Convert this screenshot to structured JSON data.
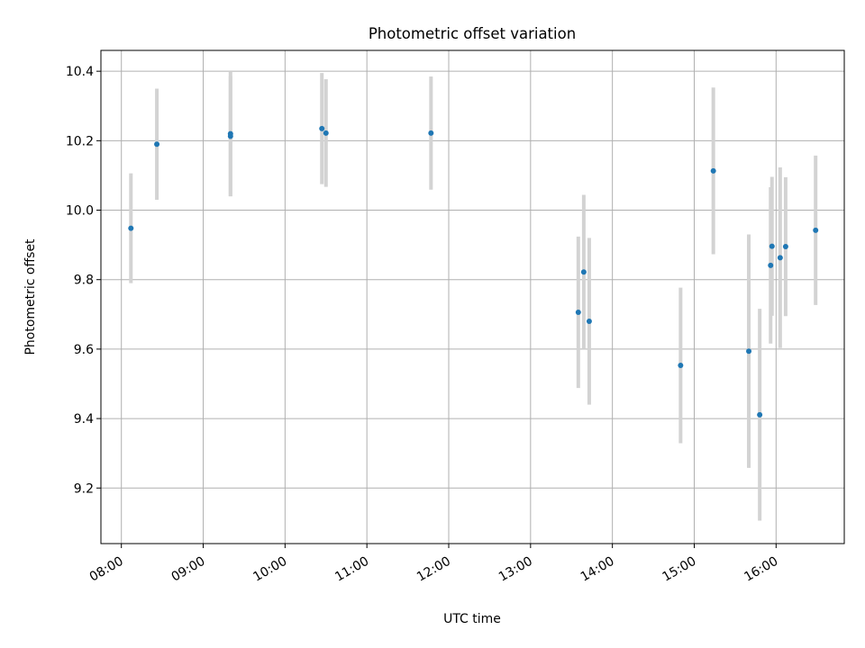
{
  "chart_data": {
    "type": "scatter",
    "title": "Photometric offset variation",
    "xlabel": "UTC time",
    "ylabel": "Photometric offset",
    "xlim": [
      "07:45",
      "16:50"
    ],
    "ylim": [
      9.04,
      10.46
    ],
    "x_ticks": [
      "08:00",
      "09:00",
      "10:00",
      "11:00",
      "12:00",
      "13:00",
      "14:00",
      "15:00",
      "16:00"
    ],
    "y_ticks": [
      9.2,
      9.4,
      9.6,
      9.8,
      10.0,
      10.2,
      10.4
    ],
    "grid": true,
    "marker_color": "#1f77b4",
    "errorbar_color": "#d3d3d3",
    "points": [
      {
        "x": "08:07",
        "y": 9.948,
        "err": 0.158
      },
      {
        "x": "08:26",
        "y": 10.19,
        "err": 0.16
      },
      {
        "x": "09:20",
        "y": 10.213,
        "err": 0.173
      },
      {
        "x": "09:20",
        "y": 10.22,
        "err": 0.18
      },
      {
        "x": "10:27",
        "y": 10.235,
        "err": 0.16
      },
      {
        "x": "10:30",
        "y": 10.222,
        "err": 0.155
      },
      {
        "x": "11:47",
        "y": 10.222,
        "err": 0.163
      },
      {
        "x": "13:35",
        "y": 9.706,
        "err": 0.218
      },
      {
        "x": "13:39",
        "y": 9.822,
        "err": 0.222
      },
      {
        "x": "13:43",
        "y": 9.68,
        "err": 0.24
      },
      {
        "x": "14:50",
        "y": 9.553,
        "err": 0.224
      },
      {
        "x": "15:14",
        "y": 10.113,
        "err": 0.24
      },
      {
        "x": "15:40",
        "y": 9.594,
        "err": 0.336
      },
      {
        "x": "15:48",
        "y": 9.411,
        "err": 0.305
      },
      {
        "x": "15:56",
        "y": 9.841,
        "err": 0.225
      },
      {
        "x": "15:57",
        "y": 9.896,
        "err": 0.2
      },
      {
        "x": "16:03",
        "y": 9.863,
        "err": 0.26
      },
      {
        "x": "16:07",
        "y": 9.895,
        "err": 0.2
      },
      {
        "x": "16:29",
        "y": 9.942,
        "err": 0.215
      }
    ]
  }
}
